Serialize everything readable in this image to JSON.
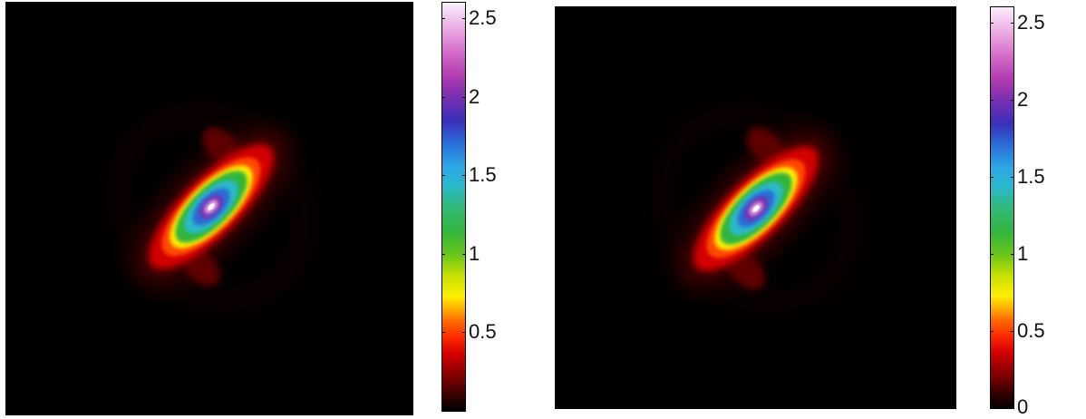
{
  "chart_data": [
    {
      "type": "heatmap",
      "title": "",
      "xlabel": "",
      "ylabel": "",
      "colorbar": {
        "range": [
          0,
          2.6
        ],
        "ticks": [
          {
            "value": 0.5,
            "label": "0.5"
          },
          {
            "value": 1,
            "label": "1"
          },
          {
            "value": 1.5,
            "label": "1.5"
          },
          {
            "value": 2,
            "label": "2"
          },
          {
            "value": 2.5,
            "label": "2.5"
          }
        ]
      },
      "peak_value": 2.6,
      "grid": false,
      "background": "#000000"
    },
    {
      "type": "heatmap",
      "title": "",
      "xlabel": "",
      "ylabel": "",
      "colorbar": {
        "range": [
          0,
          2.6
        ],
        "ticks": [
          {
            "value": 0,
            "label": "0"
          },
          {
            "value": 0.5,
            "label": "0.5"
          },
          {
            "value": 1,
            "label": "1"
          },
          {
            "value": 1.5,
            "label": "1.5"
          },
          {
            "value": 2,
            "label": "2"
          },
          {
            "value": 2.5,
            "label": "2.5"
          }
        ]
      },
      "peak_value": 2.55,
      "grid": false,
      "background": "#000000"
    }
  ],
  "colormap": [
    "#000000",
    "#d40000",
    "#ff6a00",
    "#ffee00",
    "#6ec61a",
    "#33b53c",
    "#2ab9c9",
    "#2a6ad6",
    "#3a2fb8",
    "#b13bb0",
    "#fbeefc"
  ]
}
